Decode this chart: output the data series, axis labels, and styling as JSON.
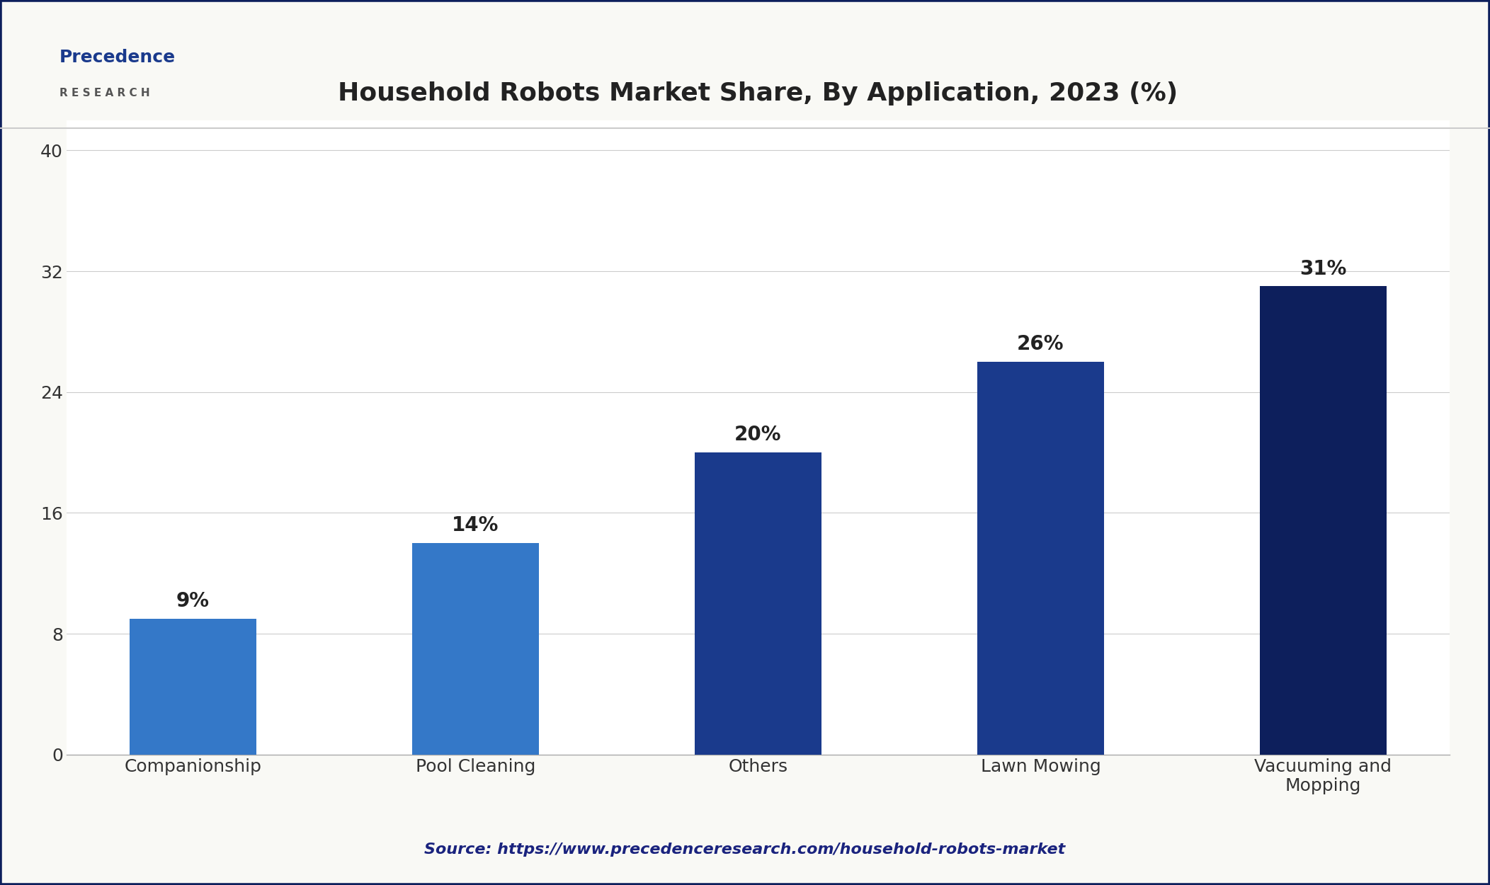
{
  "title": "Household Robots Market Share, By Application, 2023 (%)",
  "categories": [
    "Companionship",
    "Pool Cleaning",
    "Others",
    "Lawn Mowing",
    "Vacuuming and\nMopping"
  ],
  "values": [
    9,
    14,
    20,
    26,
    31
  ],
  "labels": [
    "9%",
    "14%",
    "20%",
    "26%",
    "31%"
  ],
  "bar_colors": [
    "#3478c8",
    "#3478c8",
    "#1a3a8c",
    "#1a3a8c",
    "#0d1f5c"
  ],
  "ylim": [
    0,
    42
  ],
  "yticks": [
    0,
    8,
    16,
    24,
    32,
    40
  ],
  "background_color": "#f9f9f5",
  "plot_background": "#ffffff",
  "title_color": "#222222",
  "title_fontsize": 26,
  "axis_color": "#333333",
  "tick_fontsize": 18,
  "bar_label_fontsize": 20,
  "source_text": "Source: https://www.precedenceresearch.com/household-robots-market",
  "source_color": "#1a237e",
  "source_fontsize": 16,
  "border_color": "#0d1f5c",
  "logo_precedence_color": "#1a3a8c",
  "logo_research_color": "#555555"
}
